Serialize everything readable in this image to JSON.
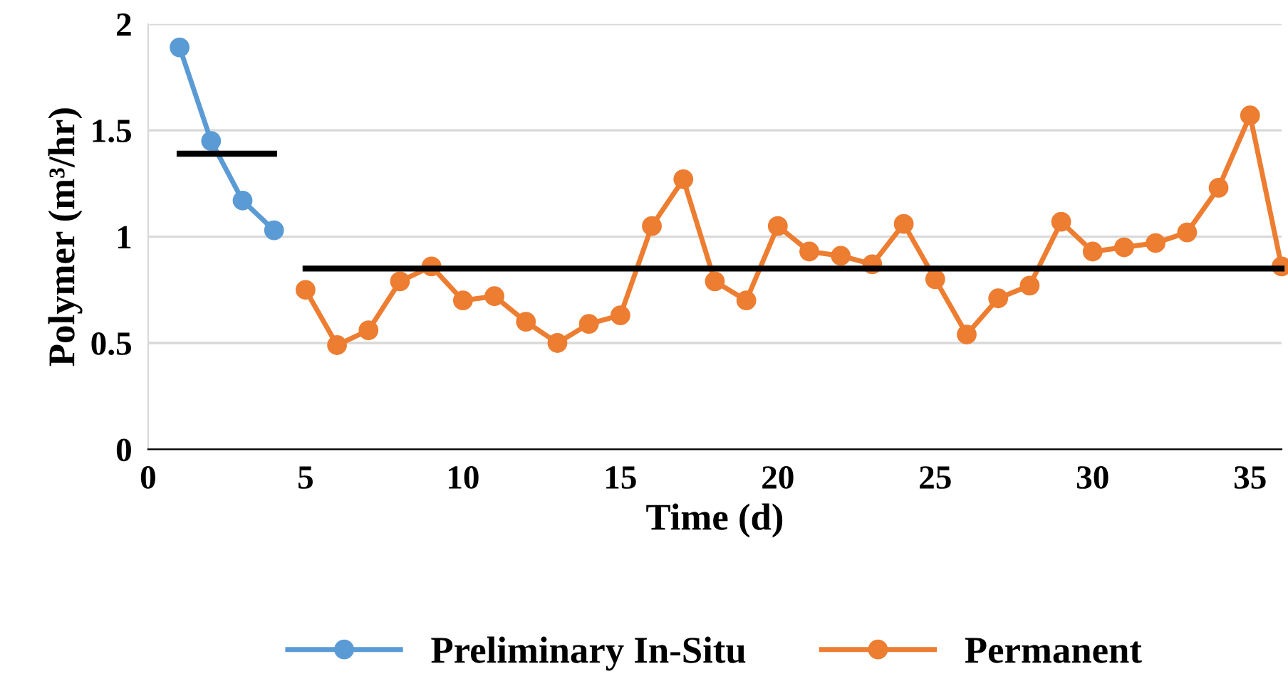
{
  "chart_data": {
    "type": "line",
    "xlabel": "Time (d)",
    "ylabel": "Polymer (m³/hr)",
    "xlim": [
      0,
      36
    ],
    "xticks": [
      0,
      5,
      10,
      15,
      20,
      25,
      30,
      35
    ],
    "ylim": [
      0,
      2
    ],
    "yticks": [
      0,
      0.5,
      1,
      1.5,
      2
    ],
    "grid": "y",
    "legend": "bottom",
    "marker": "circle",
    "line_style": "solid",
    "series": [
      {
        "name": "Preliminary In-Situ",
        "color": "#5b9bd5",
        "x": [
          1,
          2,
          3,
          4
        ],
        "values": [
          1.89,
          1.45,
          1.17,
          1.03
        ]
      },
      {
        "name": "Permanent",
        "color": "#ed7d31",
        "x": [
          5,
          6,
          7,
          8,
          9,
          10,
          11,
          12,
          13,
          14,
          15,
          16,
          17,
          18,
          19,
          20,
          21,
          22,
          23,
          24,
          25,
          26,
          27,
          28,
          29,
          30,
          31,
          32,
          33,
          34,
          35,
          36
        ],
        "values": [
          0.75,
          0.49,
          0.56,
          0.79,
          0.86,
          0.7,
          0.72,
          0.6,
          0.5,
          0.59,
          0.63,
          1.05,
          1.27,
          0.79,
          0.7,
          1.05,
          0.93,
          0.91,
          0.87,
          1.06,
          0.8,
          0.54,
          0.71,
          0.77,
          1.07,
          0.93,
          0.95,
          0.97,
          1.02,
          1.23,
          1.57,
          0.86
        ]
      },
      {
        "type": "line",
        "color": "#000000",
        "marker": "none",
        "x": [
          1,
          4
        ],
        "values": [
          1.39,
          1.39
        ]
      },
      {
        "type": "line",
        "color": "#000000",
        "marker": "none",
        "x": [
          5,
          36
        ],
        "values": [
          0.85,
          0.85
        ]
      }
    ]
  }
}
